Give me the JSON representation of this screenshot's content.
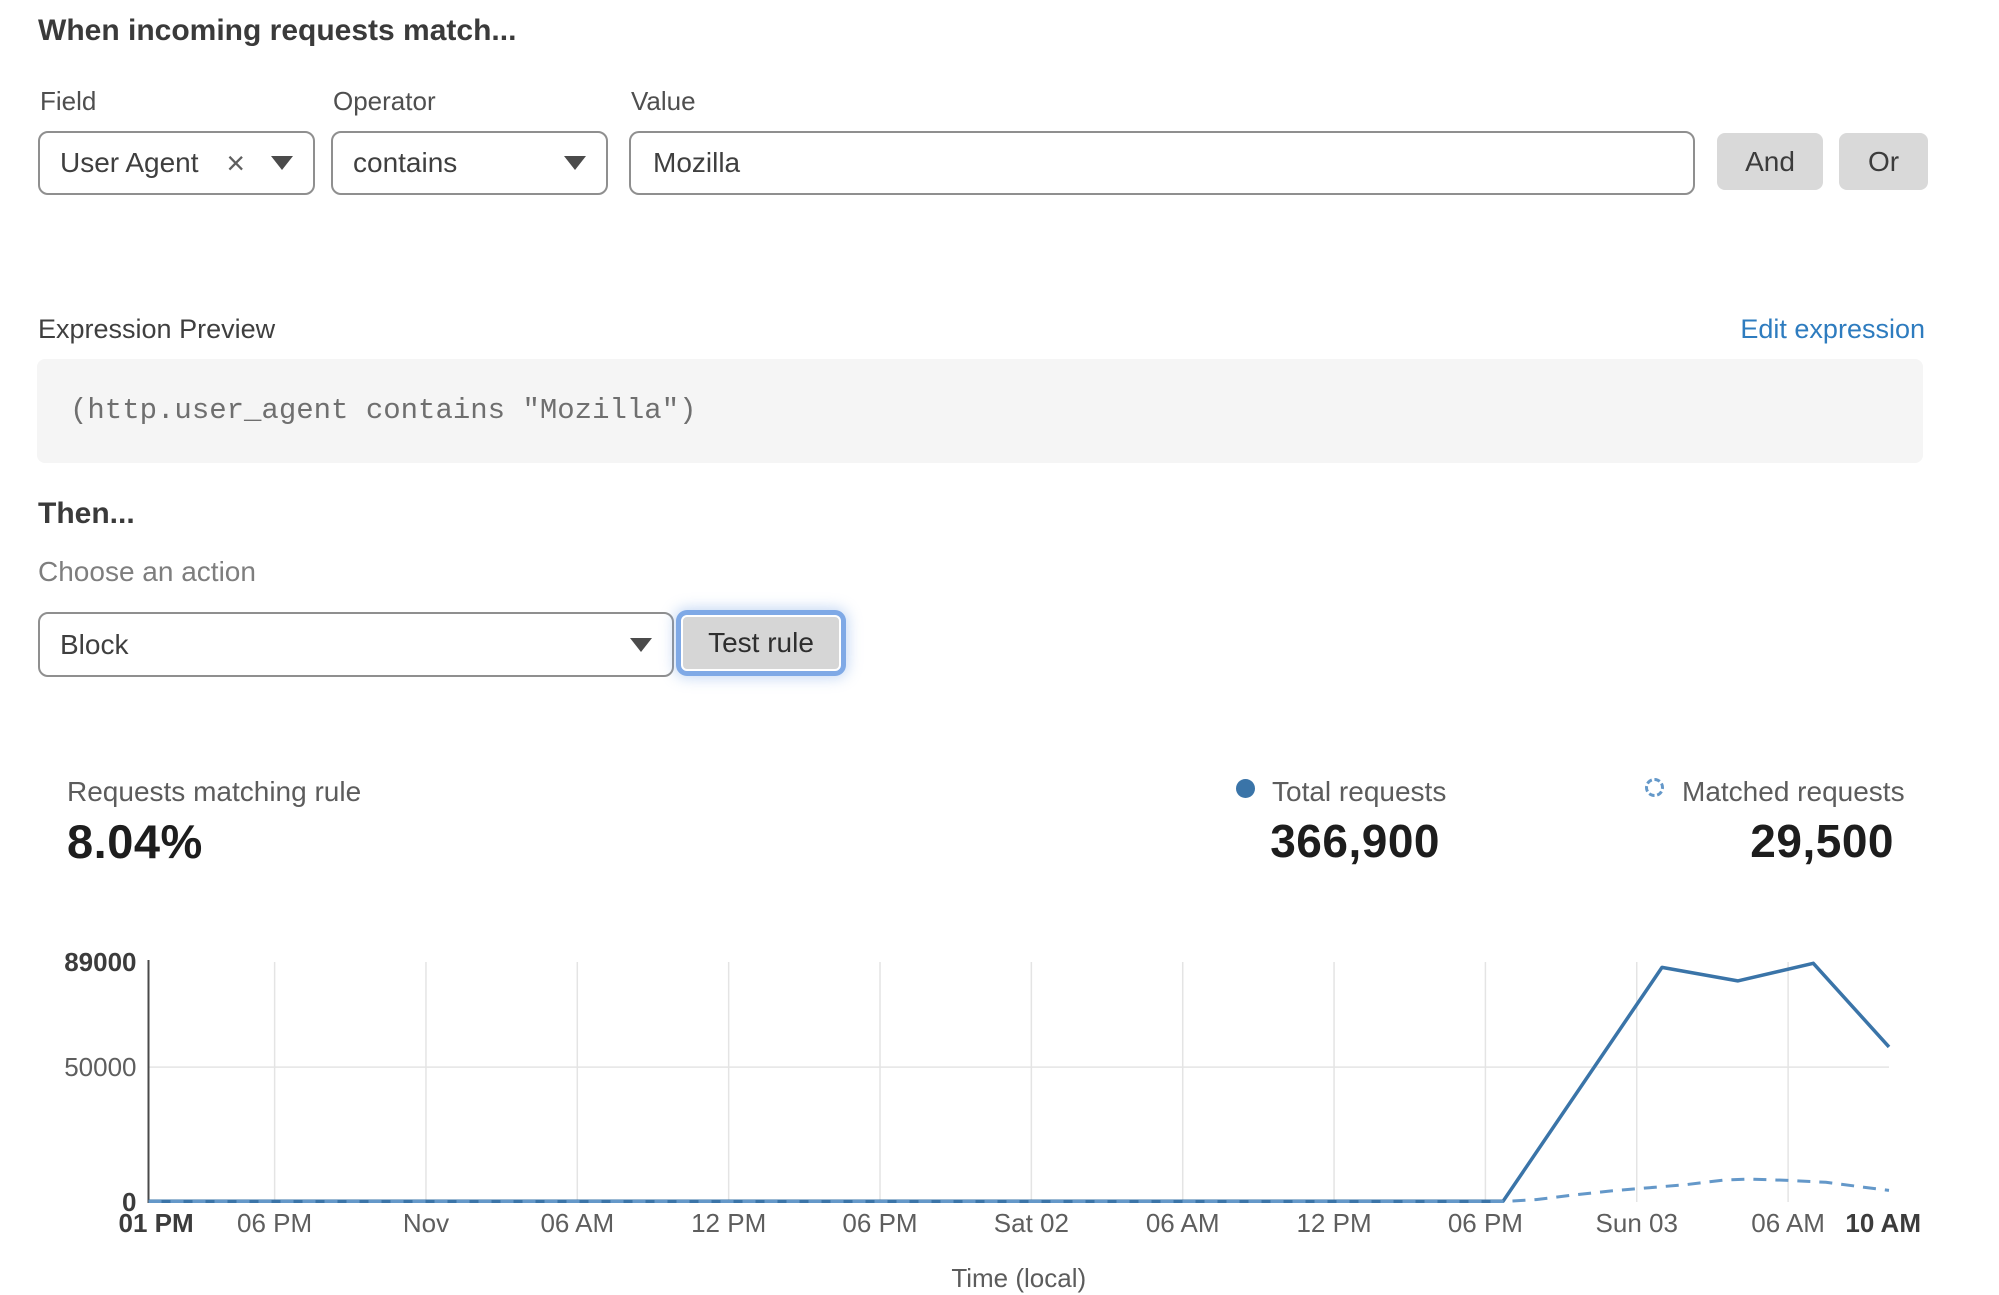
{
  "page": {
    "heading": "When incoming requests match..."
  },
  "rule_builder": {
    "field": {
      "label": "Field",
      "value": "User Agent"
    },
    "operator": {
      "label": "Operator",
      "value": "contains"
    },
    "value": {
      "label": "Value",
      "value": "Mozilla"
    },
    "and_label": "And",
    "or_label": "Or"
  },
  "expression": {
    "label": "Expression Preview",
    "edit_link": "Edit expression",
    "code": "(http.user_agent contains \"Mozilla\")"
  },
  "action": {
    "then_label": "Then...",
    "choose_label": "Choose an action",
    "selected": "Block",
    "test_button": "Test rule"
  },
  "stats": {
    "matching": {
      "label": "Requests matching rule",
      "value": "8.04%"
    },
    "total": {
      "label": "Total requests",
      "value": "366,900"
    },
    "matched": {
      "label": "Matched requests",
      "value": "29,500"
    }
  },
  "colors": {
    "line_blue": "#3a74a8",
    "dashed_blue": "#6498c9",
    "link_blue": "#2e7cbf",
    "focus_ring": "#7fa9e6",
    "button_gray": "#d9d9d9",
    "code_background": "#f5f5f5",
    "gridline": "#e4e4e4",
    "axis": "#4a4a4a"
  },
  "chart_data": {
    "type": "line",
    "title": "",
    "xlabel": "Time (local)",
    "ylabel": "",
    "ylim": [
      0,
      89000
    ],
    "xlim_hours": [
      0,
      69
    ],
    "grid": true,
    "legend_position": "top-right-header",
    "x_ticks": [
      {
        "t": 0,
        "label": "01 PM",
        "bold": true
      },
      {
        "t": 5,
        "label": "06 PM"
      },
      {
        "t": 11,
        "label": "Nov"
      },
      {
        "t": 17,
        "label": "06 AM"
      },
      {
        "t": 23,
        "label": "12 PM"
      },
      {
        "t": 29,
        "label": "06 PM"
      },
      {
        "t": 35,
        "label": "Sat 02"
      },
      {
        "t": 41,
        "label": "06 AM"
      },
      {
        "t": 47,
        "label": "12 PM"
      },
      {
        "t": 53,
        "label": "06 PM"
      },
      {
        "t": 59,
        "label": "Sun 03"
      },
      {
        "t": 65,
        "label": "06 AM"
      },
      {
        "t": 69,
        "label": "10 AM",
        "bold": true
      }
    ],
    "y_ticks": [
      {
        "v": 0,
        "label": "0",
        "bold": true
      },
      {
        "v": 50000,
        "label": "50000"
      },
      {
        "v": 89000,
        "label": "89000",
        "bold": true
      }
    ],
    "series": [
      {
        "name": "Total requests",
        "style": "solid",
        "color": "#3a74a8",
        "points": [
          [
            0,
            300
          ],
          [
            10,
            300
          ],
          [
            20,
            300
          ],
          [
            30,
            300
          ],
          [
            40,
            300
          ],
          [
            50,
            300
          ],
          [
            53.7,
            300
          ],
          [
            60,
            87000
          ],
          [
            63,
            82000
          ],
          [
            66,
            88500
          ],
          [
            69,
            57500
          ]
        ]
      },
      {
        "name": "Matched requests",
        "style": "dashed",
        "color": "#6498c9",
        "points": [
          [
            0,
            200
          ],
          [
            10,
            200
          ],
          [
            20,
            200
          ],
          [
            30,
            200
          ],
          [
            40,
            200
          ],
          [
            50,
            200
          ],
          [
            53.7,
            200
          ],
          [
            55,
            900
          ],
          [
            56.5,
            2600
          ],
          [
            58,
            4100
          ],
          [
            59.5,
            5300
          ],
          [
            61,
            6500
          ],
          [
            62.5,
            8200
          ],
          [
            63.5,
            8500
          ],
          [
            65,
            8000
          ],
          [
            66.5,
            7300
          ],
          [
            68,
            5500
          ],
          [
            69,
            4300
          ]
        ]
      }
    ]
  }
}
